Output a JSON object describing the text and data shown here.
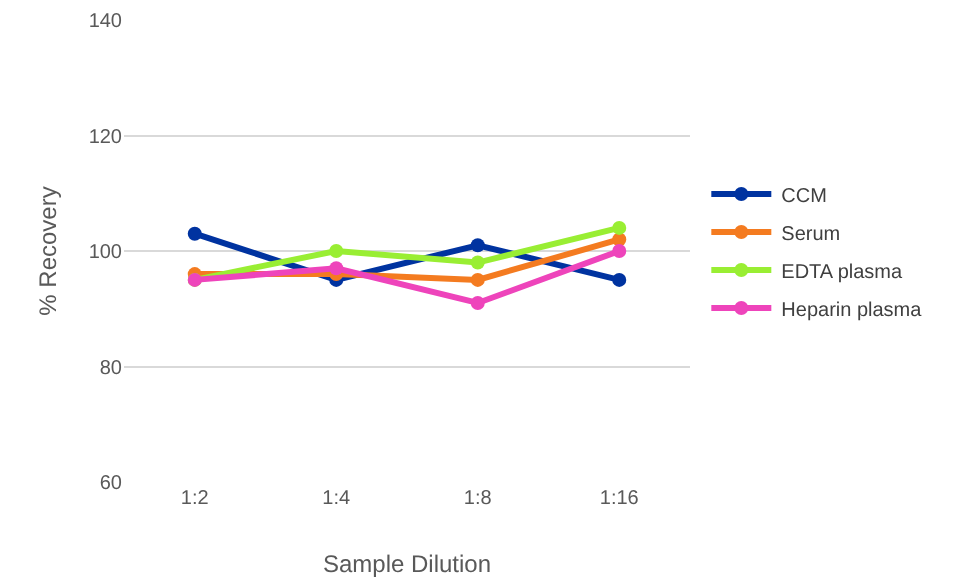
{
  "chart_data": {
    "type": "line",
    "xlabel": "Sample Dilution",
    "ylabel": "% Recovery",
    "categories": [
      "1:2",
      "1:4",
      "1:8",
      "1:16"
    ],
    "series": [
      {
        "name": "CCM",
        "color": "#0033a0",
        "values": [
          103,
          95,
          101,
          95
        ]
      },
      {
        "name": "Serum",
        "color": "#f47b20",
        "values": [
          96,
          96,
          95,
          102
        ]
      },
      {
        "name": "EDTA plasma",
        "color": "#99ee33",
        "values": [
          95,
          100,
          98,
          104
        ]
      },
      {
        "name": "Heparin plasma",
        "color": "#ee44bb",
        "values": [
          95,
          97,
          91,
          100
        ]
      }
    ],
    "ylim": [
      60,
      140
    ],
    "yticks": [
      60,
      80,
      100,
      120,
      140
    ],
    "grid": "y",
    "legend": "right",
    "marker": "circle",
    "line_style": "solid"
  }
}
